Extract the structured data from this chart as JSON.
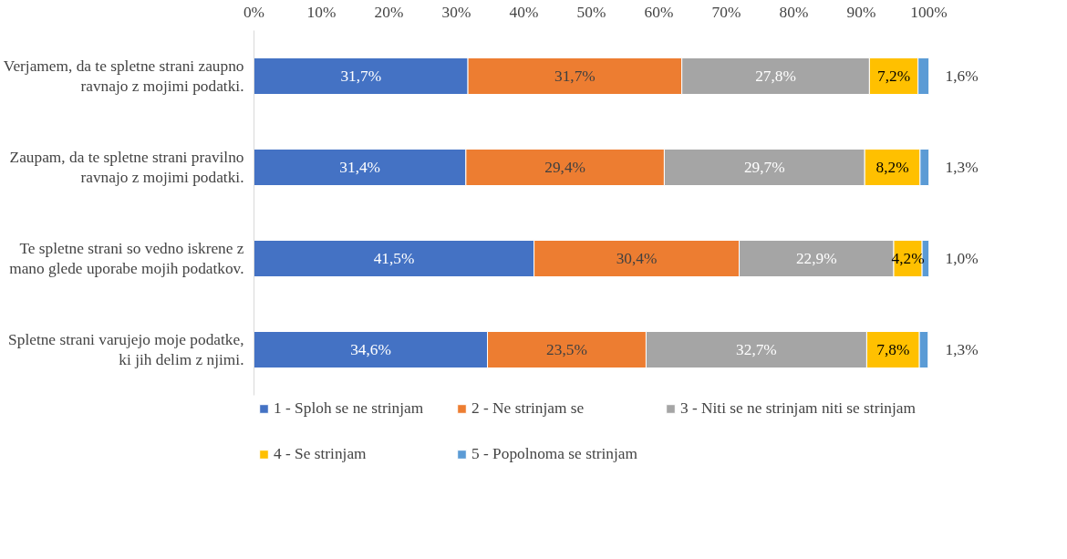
{
  "chart_data": {
    "type": "bar",
    "orientation": "horizontal",
    "stacked": true,
    "categories": [
      "Verjamem, da te spletne strani zaupno ravnajo z mojimi podatki.",
      "Zaupam, da te spletne strani pravilno ravnajo z mojimi podatki.",
      "Te spletne strani so vedno iskrene z mano glede uporabe mojih podatkov.",
      "Spletne strani varujejo moje podatke, ki jih delim z njimi."
    ],
    "series": [
      {
        "name": "1 - Sploh se ne strinjam",
        "color": "#4472c4",
        "values": [
          31.7,
          31.4,
          41.5,
          34.6
        ],
        "value_labels": [
          "31,7%",
          "31,4%",
          "41,5%",
          "34,6%"
        ]
      },
      {
        "name": "2 - Ne strinjam se",
        "color": "#ed7d31",
        "values": [
          31.7,
          29.4,
          30.4,
          23.5
        ],
        "value_labels": [
          "31,7%",
          "29,4%",
          "30,4%",
          "23,5%"
        ]
      },
      {
        "name": "3 - Niti se ne strinjam niti se strinjam",
        "color": "#a5a5a5",
        "values": [
          27.8,
          29.7,
          22.9,
          32.7
        ],
        "value_labels": [
          "27,8%",
          "29,7%",
          "22,9%",
          "32,7%"
        ]
      },
      {
        "name": "4 - Se strinjam",
        "color": "#ffc000",
        "values": [
          7.2,
          8.2,
          4.2,
          7.8
        ],
        "value_labels": [
          "7,2%",
          "8,2%",
          "4,2%",
          "7,8%"
        ]
      },
      {
        "name": "5 - Popolnoma se strinjam",
        "color": "#5b9bd5",
        "values": [
          1.6,
          1.3,
          1.0,
          1.3
        ],
        "value_labels": [
          "1,6%",
          "1,3%",
          "1,0%",
          "1,3%"
        ]
      }
    ],
    "xlim": [
      0,
      100
    ],
    "xticks": [
      {
        "value": 0,
        "label": "0%"
      },
      {
        "value": 10,
        "label": "10%"
      },
      {
        "value": 20,
        "label": "20%"
      },
      {
        "value": 30,
        "label": "30%"
      },
      {
        "value": 40,
        "label": "40%"
      },
      {
        "value": 50,
        "label": "50%"
      },
      {
        "value": 60,
        "label": "60%"
      },
      {
        "value": 70,
        "label": "70%"
      },
      {
        "value": 80,
        "label": "80%"
      },
      {
        "value": 90,
        "label": "90%"
      },
      {
        "value": 100,
        "label": "100%"
      }
    ],
    "grid": false,
    "legend": "bottom"
  }
}
